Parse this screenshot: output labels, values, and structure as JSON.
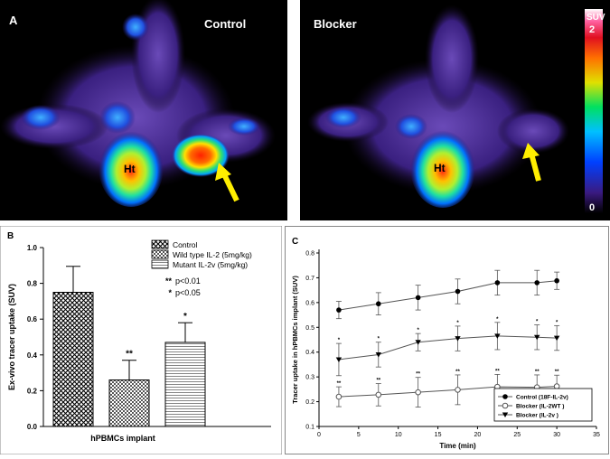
{
  "panel_a": {
    "letter": "A",
    "left_label": "Control",
    "right_label": "Blocker",
    "heart_label": "Ht",
    "colorbar_label": "SUV",
    "colorbar_max": "2",
    "colorbar_min": "0",
    "arrow_color": "#ffee00"
  },
  "chart_data": [
    {
      "panel": "B",
      "type": "bar",
      "categories": [
        "Control",
        "Wild type IL-2 (5mg/kg)",
        "Mutant IL-2v (5mg/kg)"
      ],
      "values": [
        0.75,
        0.26,
        0.47
      ],
      "errors": [
        0.145,
        0.11,
        0.11
      ],
      "significance": [
        "",
        "**",
        "*"
      ],
      "xlabel": "hPBMCs implant",
      "ylabel": "Ex-vivo tracer uptake (SUV)",
      "ylim": [
        0,
        1.0
      ],
      "yticks": [
        "0.0",
        "0.2",
        "0.4",
        "0.6",
        "0.8",
        "1.0"
      ],
      "legend": [
        "Control",
        "Wild type IL-2 (5mg/kg)",
        "Mutant IL-2v (5mg/kg)"
      ],
      "legend_notes": [
        {
          "mark": "**",
          "text": "p<0.01"
        },
        {
          "mark": "*",
          "text": "p<0.05"
        }
      ],
      "legend_position": "top-right"
    },
    {
      "panel": "C",
      "type": "line",
      "x": [
        2.5,
        7.5,
        12.5,
        17.5,
        22.5,
        27.5,
        30
      ],
      "series": [
        {
          "name": "Control (18F-IL-2v)",
          "marker": "filled-circle",
          "values": [
            0.57,
            0.595,
            0.62,
            0.645,
            0.68,
            0.68,
            0.688
          ],
          "errors": [
            0.035,
            0.045,
            0.05,
            0.05,
            0.05,
            0.05,
            0.035
          ],
          "marks": []
        },
        {
          "name": "Blocker (IL-2WT )",
          "marker": "open-circle",
          "values": [
            0.22,
            0.228,
            0.238,
            0.248,
            0.26,
            0.258,
            0.262
          ],
          "errors": [
            0.04,
            0.045,
            0.06,
            0.06,
            0.05,
            0.05,
            0.045
          ],
          "marks": [
            "**",
            "**",
            "**",
            "**",
            "**",
            "**",
            "**"
          ]
        },
        {
          "name": "Blocker (IL-2v )",
          "marker": "filled-triangle-down",
          "values": [
            0.37,
            0.39,
            0.44,
            0.455,
            0.465,
            0.46,
            0.457
          ],
          "errors": [
            0.065,
            0.05,
            0.035,
            0.05,
            0.055,
            0.05,
            0.05
          ],
          "marks": [
            "*",
            "*",
            "*",
            "*",
            "*",
            "*",
            "*"
          ]
        }
      ],
      "xlabel": "Time (min)",
      "ylabel": "Tracer uptake in hPBMCs implant (SUV)",
      "xlim": [
        0,
        35
      ],
      "ylim": [
        0.1,
        0.8
      ],
      "xticks": [
        "0",
        "5",
        "10",
        "15",
        "20",
        "25",
        "30",
        "35"
      ],
      "yticks": [
        "0.1",
        "0.2",
        "0.3",
        "0.4",
        "0.5",
        "0.6",
        "0.7",
        "0.8"
      ],
      "legend_position": "bottom-right"
    }
  ]
}
